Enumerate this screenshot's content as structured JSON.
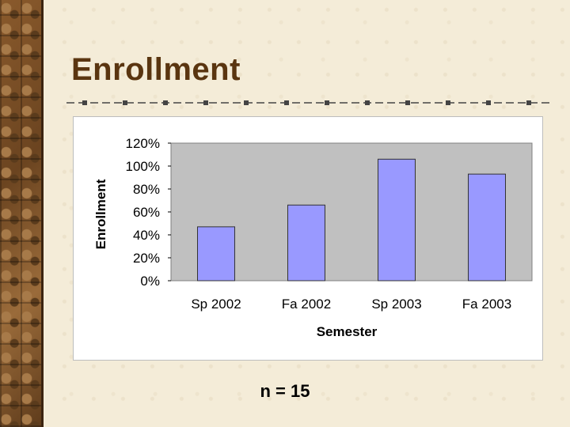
{
  "slide": {
    "title": "Enrollment",
    "footnote": "n = 15"
  },
  "colors": {
    "title": "#5a3510",
    "bar_fill": "#9999ff",
    "plot_background": "#c0c0c0",
    "chart_background": "#ffffff",
    "rule": "#444444"
  },
  "chart_data": {
    "type": "bar",
    "title": "",
    "xlabel": "Semester",
    "ylabel": "Enrollment",
    "categories": [
      "Sp 2002",
      "Fa 2002",
      "Sp 2003",
      "Fa 2003"
    ],
    "values": [
      0.47,
      0.66,
      1.06,
      0.93
    ],
    "ylim": [
      0,
      1.2
    ],
    "yticks": [
      {
        "value": 0,
        "label": "0%"
      },
      {
        "value": 0.2,
        "label": "20%"
      },
      {
        "value": 0.4,
        "label": "40%"
      },
      {
        "value": 0.6,
        "label": "60%"
      },
      {
        "value": 0.8,
        "label": "80%"
      },
      {
        "value": 1.0,
        "label": "100%"
      },
      {
        "value": 1.2,
        "label": "120%"
      }
    ],
    "grid": false,
    "legend": "none"
  }
}
